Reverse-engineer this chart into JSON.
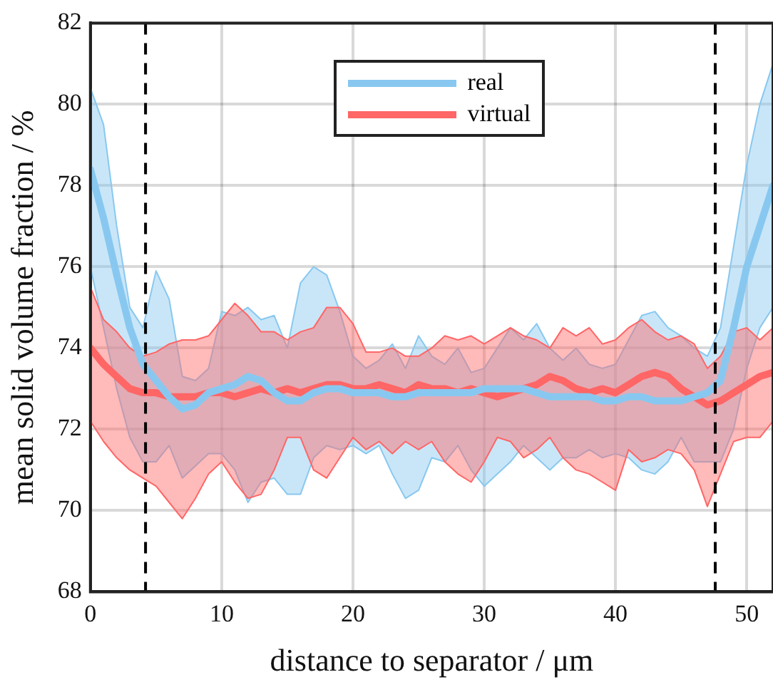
{
  "chart_data": {
    "type": "line",
    "xlabel": "distance to separator / μm",
    "ylabel": "mean solid volume fraction / %",
    "x": [
      0,
      1,
      2,
      3,
      4,
      5,
      6,
      7,
      8,
      9,
      10,
      11,
      12,
      13,
      14,
      15,
      16,
      17,
      18,
      19,
      20,
      21,
      22,
      23,
      24,
      25,
      26,
      27,
      28,
      29,
      30,
      31,
      32,
      33,
      34,
      35,
      36,
      37,
      38,
      39,
      40,
      41,
      42,
      43,
      44,
      45,
      46,
      47,
      48,
      49,
      50,
      51,
      52
    ],
    "series": [
      {
        "name": "real",
        "color": "#88c8f0",
        "values": [
          78.4,
          77.2,
          75.8,
          74.5,
          73.6,
          73.2,
          72.8,
          72.5,
          72.6,
          72.9,
          73.0,
          73.1,
          73.3,
          73.2,
          72.9,
          72.7,
          72.7,
          72.9,
          73.0,
          73.0,
          72.9,
          72.9,
          72.9,
          72.8,
          72.8,
          72.9,
          72.9,
          72.9,
          72.9,
          72.9,
          73.0,
          73.0,
          73.0,
          73.0,
          72.9,
          72.8,
          72.8,
          72.8,
          72.8,
          72.7,
          72.7,
          72.8,
          72.8,
          72.7,
          72.7,
          72.7,
          72.8,
          72.9,
          73.2,
          74.5,
          76.0,
          77.0,
          78.0
        ],
        "upper": [
          80.4,
          79.5,
          77.0,
          75.0,
          74.5,
          75.9,
          75.2,
          73.3,
          73.2,
          73.5,
          74.9,
          74.8,
          75.0,
          74.7,
          74.8,
          74.0,
          75.6,
          76.0,
          75.8,
          74.9,
          73.8,
          73.5,
          73.7,
          74.1,
          73.5,
          74.3,
          73.8,
          73.6,
          74.0,
          73.4,
          73.5,
          74.0,
          74.5,
          74.2,
          74.6,
          74.0,
          73.7,
          74.0,
          73.6,
          73.5,
          73.6,
          74.2,
          74.8,
          74.9,
          74.5,
          74.3,
          74.0,
          73.8,
          74.5,
          76.5,
          78.5,
          80.0,
          81.0
        ],
        "lower": [
          76.0,
          74.5,
          73.0,
          71.8,
          71.2,
          71.2,
          71.6,
          70.8,
          71.1,
          71.4,
          71.4,
          71.0,
          70.2,
          70.7,
          70.8,
          70.4,
          70.4,
          71.3,
          71.6,
          71.5,
          71.6,
          71.4,
          71.6,
          70.9,
          70.3,
          70.5,
          71.3,
          71.2,
          71.6,
          71.0,
          70.6,
          70.9,
          71.2,
          71.6,
          71.3,
          71.0,
          71.3,
          71.3,
          71.5,
          71.3,
          71.4,
          71.3,
          71.0,
          70.9,
          71.2,
          71.8,
          71.2,
          71.2,
          71.2,
          72.0,
          73.5,
          74.5,
          75.0
        ]
      },
      {
        "name": "virtual",
        "color": "#ff6666",
        "values": [
          74.0,
          73.6,
          73.3,
          73.0,
          72.9,
          72.9,
          72.8,
          72.8,
          72.8,
          72.9,
          72.9,
          72.8,
          72.9,
          73.0,
          72.9,
          73.0,
          72.9,
          73.0,
          73.1,
          73.1,
          73.0,
          73.0,
          73.1,
          73.0,
          72.9,
          73.1,
          73.0,
          73.0,
          72.9,
          73.0,
          72.9,
          72.8,
          72.9,
          73.0,
          73.1,
          73.3,
          73.2,
          73.0,
          72.9,
          73.0,
          72.9,
          73.1,
          73.3,
          73.4,
          73.3,
          73.0,
          72.8,
          72.6,
          72.7,
          72.9,
          73.1,
          73.3,
          73.4
        ],
        "upper": [
          75.5,
          74.7,
          74.4,
          74.0,
          73.8,
          73.9,
          74.1,
          74.2,
          74.2,
          74.3,
          74.7,
          75.1,
          74.8,
          74.4,
          74.4,
          74.2,
          74.4,
          74.5,
          75.0,
          75.0,
          74.6,
          73.9,
          73.9,
          74.0,
          73.8,
          73.8,
          74.0,
          74.3,
          74.2,
          74.3,
          74.1,
          74.3,
          74.5,
          74.3,
          74.2,
          74.0,
          74.5,
          74.3,
          74.5,
          74.1,
          74.2,
          74.5,
          74.7,
          74.4,
          74.2,
          74.3,
          74.1,
          73.5,
          73.8,
          74.4,
          74.5,
          74.2,
          74.5
        ],
        "lower": [
          72.2,
          71.7,
          71.3,
          71.0,
          70.8,
          70.6,
          70.2,
          69.8,
          70.3,
          70.9,
          71.2,
          70.7,
          70.3,
          70.4,
          71.0,
          71.8,
          71.8,
          71.0,
          70.8,
          71.3,
          71.8,
          71.5,
          71.7,
          71.4,
          71.7,
          71.5,
          71.7,
          71.2,
          70.9,
          70.7,
          71.2,
          71.8,
          71.7,
          71.3,
          71.5,
          71.8,
          71.3,
          71.0,
          70.9,
          70.7,
          70.5,
          71.5,
          71.2,
          71.3,
          71.5,
          71.4,
          71.0,
          70.1,
          70.9,
          71.7,
          71.8,
          71.8,
          72.2
        ]
      }
    ],
    "xlim": [
      0,
      52
    ],
    "xticks": [
      0,
      10,
      20,
      30,
      40,
      50
    ],
    "ylim": [
      68,
      82
    ],
    "yticks": [
      68,
      70,
      72,
      74,
      76,
      78,
      80,
      82
    ],
    "ref_lines": [
      {
        "axis": "x",
        "value": 4.2,
        "color": "#000000",
        "line_style": "dashed"
      },
      {
        "axis": "x",
        "value": 47.6,
        "color": "#000000",
        "line_style": "dashed"
      }
    ],
    "grid": true,
    "legend": "top",
    "marker": "none",
    "line_style": "solid"
  }
}
